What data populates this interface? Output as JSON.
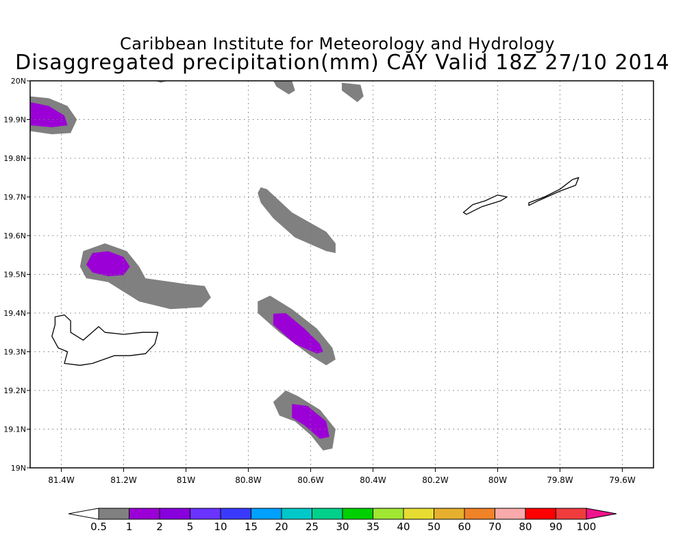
{
  "header": {
    "institute": "Caribbean Institute for Meteorology and Hydrology",
    "product": "Disaggregated precipitation(mm) CAY Valid 18Z 27/10 2014"
  },
  "map": {
    "lon_range": [
      -81.5,
      -79.5
    ],
    "lat_range": [
      19.0,
      20.0
    ],
    "grid": true,
    "lon_ticks": [
      {
        "value": -81.4,
        "label": "81.4W"
      },
      {
        "value": -81.2,
        "label": "81.2W"
      },
      {
        "value": -81.0,
        "label": "81W"
      },
      {
        "value": -80.8,
        "label": "80.8W"
      },
      {
        "value": -80.6,
        "label": "80.6W"
      },
      {
        "value": -80.4,
        "label": "80.4W"
      },
      {
        "value": -80.2,
        "label": "80.2W"
      },
      {
        "value": -80.0,
        "label": "80W"
      },
      {
        "value": -79.8,
        "label": "79.8W"
      },
      {
        "value": -79.6,
        "label": "79.6W"
      }
    ],
    "lat_ticks": [
      {
        "value": 19.0,
        "label": "19N"
      },
      {
        "value": 19.1,
        "label": "19.1N"
      },
      {
        "value": 19.2,
        "label": "19.2N"
      },
      {
        "value": 19.3,
        "label": "19.3N"
      },
      {
        "value": 19.4,
        "label": "19.4N"
      },
      {
        "value": 19.5,
        "label": "19.5N"
      },
      {
        "value": 19.6,
        "label": "19.6N"
      },
      {
        "value": 19.7,
        "label": "19.7N"
      },
      {
        "value": 19.8,
        "label": "19.8N"
      },
      {
        "value": 19.9,
        "label": "19.9N"
      },
      {
        "value": 20.0,
        "label": "20N"
      }
    ],
    "precip_areas": [
      {
        "name": "cell-northwest",
        "color": "#808080",
        "points": [
          [
            -81.5,
            19.96
          ],
          [
            -81.44,
            19.955
          ],
          [
            -81.38,
            19.935
          ],
          [
            -81.35,
            19.9
          ],
          [
            -81.37,
            19.865
          ],
          [
            -81.43,
            19.862
          ],
          [
            -81.5,
            19.87
          ]
        ]
      },
      {
        "name": "cell-northwest-core",
        "color": "#9b00d6",
        "points": [
          [
            -81.5,
            19.945
          ],
          [
            -81.44,
            19.935
          ],
          [
            -81.39,
            19.91
          ],
          [
            -81.38,
            19.885
          ],
          [
            -81.43,
            19.88
          ],
          [
            -81.5,
            19.885
          ]
        ]
      },
      {
        "name": "cell-top-center",
        "color": "#808080",
        "points": [
          [
            -80.72,
            20.0
          ],
          [
            -80.66,
            20.0
          ],
          [
            -80.65,
            19.975
          ],
          [
            -80.67,
            19.965
          ],
          [
            -80.71,
            19.985
          ]
        ]
      },
      {
        "name": "cell-top-right",
        "color": "#808080",
        "points": [
          [
            -80.5,
            19.995
          ],
          [
            -80.44,
            19.99
          ],
          [
            -80.43,
            19.96
          ],
          [
            -80.45,
            19.945
          ],
          [
            -80.5,
            19.975
          ]
        ]
      },
      {
        "name": "cell-top-left-sliver",
        "color": "#808080",
        "points": [
          [
            -81.1,
            20.0
          ],
          [
            -81.06,
            20.0
          ],
          [
            -81.08,
            19.995
          ]
        ]
      },
      {
        "name": "band-central",
        "color": "#808080",
        "points": [
          [
            -80.76,
            19.725
          ],
          [
            -80.74,
            19.72
          ],
          [
            -80.66,
            19.66
          ],
          [
            -80.55,
            19.61
          ],
          [
            -80.52,
            19.58
          ],
          [
            -80.52,
            19.555
          ],
          [
            -80.55,
            19.56
          ],
          [
            -80.65,
            19.595
          ],
          [
            -80.72,
            19.645
          ],
          [
            -80.76,
            19.685
          ],
          [
            -80.77,
            19.71
          ]
        ]
      },
      {
        "name": "cell-west-middle",
        "color": "#808080",
        "points": [
          [
            -81.34,
            19.52
          ],
          [
            -81.33,
            19.56
          ],
          [
            -81.26,
            19.58
          ],
          [
            -81.19,
            19.56
          ],
          [
            -81.15,
            19.52
          ],
          [
            -81.13,
            19.49
          ],
          [
            -81.0,
            19.475
          ],
          [
            -80.94,
            19.47
          ],
          [
            -80.92,
            19.44
          ],
          [
            -80.95,
            19.415
          ],
          [
            -81.05,
            19.41
          ],
          [
            -81.15,
            19.43
          ],
          [
            -81.25,
            19.48
          ],
          [
            -81.32,
            19.49
          ]
        ]
      },
      {
        "name": "cell-west-middle-core",
        "color": "#9b00d6",
        "points": [
          [
            -81.32,
            19.525
          ],
          [
            -81.3,
            19.555
          ],
          [
            -81.25,
            19.56
          ],
          [
            -81.2,
            19.545
          ],
          [
            -81.18,
            19.52
          ],
          [
            -81.2,
            19.498
          ],
          [
            -81.25,
            19.495
          ],
          [
            -81.3,
            19.505
          ]
        ]
      },
      {
        "name": "cell-south-band",
        "color": "#808080",
        "points": [
          [
            -80.77,
            19.43
          ],
          [
            -80.73,
            19.445
          ],
          [
            -80.66,
            19.41
          ],
          [
            -80.58,
            19.36
          ],
          [
            -80.53,
            19.31
          ],
          [
            -80.52,
            19.28
          ],
          [
            -80.55,
            19.265
          ],
          [
            -80.6,
            19.29
          ],
          [
            -80.7,
            19.35
          ],
          [
            -80.77,
            19.4
          ]
        ]
      },
      {
        "name": "cell-south-band-core",
        "color": "#9b00d6",
        "points": [
          [
            -80.72,
            19.398
          ],
          [
            -80.68,
            19.4
          ],
          [
            -80.62,
            19.36
          ],
          [
            -80.57,
            19.32
          ],
          [
            -80.56,
            19.3
          ],
          [
            -80.58,
            19.295
          ],
          [
            -80.65,
            19.32
          ],
          [
            -80.72,
            19.37
          ]
        ]
      },
      {
        "name": "cell-south",
        "color": "#808080",
        "points": [
          [
            -80.68,
            19.2
          ],
          [
            -80.64,
            19.185
          ],
          [
            -80.57,
            19.15
          ],
          [
            -80.52,
            19.1
          ],
          [
            -80.53,
            19.05
          ],
          [
            -80.56,
            19.045
          ],
          [
            -80.6,
            19.085
          ],
          [
            -80.65,
            19.12
          ],
          [
            -80.7,
            19.135
          ],
          [
            -80.72,
            19.17
          ]
        ]
      },
      {
        "name": "cell-south-core",
        "color": "#9b00d6",
        "points": [
          [
            -80.66,
            19.165
          ],
          [
            -80.61,
            19.16
          ],
          [
            -80.55,
            19.12
          ],
          [
            -80.54,
            19.08
          ],
          [
            -80.57,
            19.075
          ],
          [
            -80.62,
            19.11
          ],
          [
            -80.66,
            19.13
          ]
        ]
      }
    ],
    "islands": [
      {
        "name": "grand-cayman",
        "points": [
          [
            -81.42,
            19.39
          ],
          [
            -81.39,
            19.395
          ],
          [
            -81.37,
            19.38
          ],
          [
            -81.37,
            19.35
          ],
          [
            -81.33,
            19.33
          ],
          [
            -81.28,
            19.365
          ],
          [
            -81.26,
            19.35
          ],
          [
            -81.2,
            19.345
          ],
          [
            -81.14,
            19.35
          ],
          [
            -81.09,
            19.35
          ],
          [
            -81.1,
            19.32
          ],
          [
            -81.13,
            19.295
          ],
          [
            -81.18,
            19.29
          ],
          [
            -81.23,
            19.29
          ],
          [
            -81.3,
            19.27
          ],
          [
            -81.34,
            19.265
          ],
          [
            -81.39,
            19.27
          ],
          [
            -81.38,
            19.3
          ],
          [
            -81.41,
            19.31
          ],
          [
            -81.43,
            19.34
          ],
          [
            -81.42,
            19.37
          ]
        ]
      },
      {
        "name": "little-cayman",
        "points": [
          [
            -80.11,
            19.66
          ],
          [
            -80.08,
            19.68
          ],
          [
            -80.04,
            19.69
          ],
          [
            -80.0,
            19.705
          ],
          [
            -79.97,
            19.7
          ],
          [
            -79.99,
            19.69
          ],
          [
            -80.05,
            19.675
          ],
          [
            -80.1,
            19.655
          ]
        ]
      },
      {
        "name": "cayman-brac",
        "points": [
          [
            -79.9,
            19.685
          ],
          [
            -79.85,
            19.7
          ],
          [
            -79.8,
            19.72
          ],
          [
            -79.76,
            19.745
          ],
          [
            -79.74,
            19.75
          ],
          [
            -79.75,
            19.73
          ],
          [
            -79.8,
            19.715
          ],
          [
            -79.87,
            19.69
          ],
          [
            -79.9,
            19.678
          ]
        ]
      }
    ]
  },
  "legend": {
    "colors": [
      "#ffffff",
      "#808080",
      "#9b00d6",
      "#8800dd",
      "#6a33ff",
      "#3a3aff",
      "#00a0ff",
      "#00c8c8",
      "#00d08a",
      "#00d000",
      "#a0e632",
      "#e6dc32",
      "#e6af2d",
      "#f08228",
      "#faaaaa",
      "#ff0000",
      "#f03c3c",
      "#f0148c"
    ],
    "labels": [
      "0.5",
      "1",
      "2",
      "5",
      "10",
      "15",
      "20",
      "25",
      "30",
      "35",
      "40",
      "50",
      "60",
      "70",
      "80",
      "90",
      "100"
    ]
  }
}
